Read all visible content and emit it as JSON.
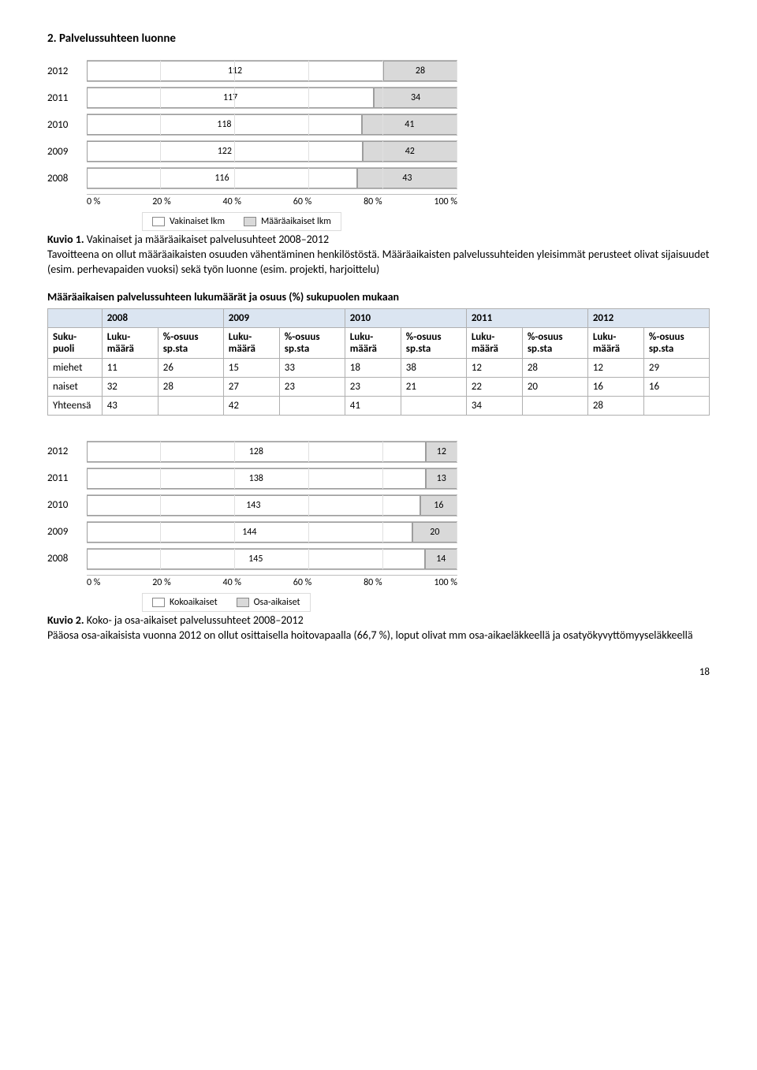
{
  "heading": "2. Palvelussuhteen luonne",
  "chart1": {
    "type": "stacked-bar-horizontal",
    "years": [
      "2012",
      "2011",
      "2010",
      "2009",
      "2008"
    ],
    "series1_label": "Vakinaiset lkm",
    "series2_label": "Määräaikaiset lkm",
    "series1_color": "#ffffff",
    "series2_color": "#d9d9d9",
    "rows": [
      {
        "year": "2012",
        "v1": 112,
        "v2": 28
      },
      {
        "year": "2011",
        "v1": 117,
        "v2": 34
      },
      {
        "year": "2010",
        "v1": 118,
        "v2": 41
      },
      {
        "year": "2009",
        "v1": 122,
        "v2": 42
      },
      {
        "year": "2008",
        "v1": 116,
        "v2": 43
      }
    ],
    "axis_ticks": [
      "0 %",
      "20 %",
      "40 %",
      "60 %",
      "80 %",
      "100 %"
    ]
  },
  "caption1": "Kuvio 1.",
  "caption1_rest": " Vakinaiset ja määräaikaiset palvelusuhteet 2008–2012",
  "para1": "Tavoitteena on ollut määräaikaisten osuuden vähentäminen henkilöstöstä. Määräaikaisten palvelussuhteiden yleisimmät perusteet olivat sijaisuudet (esim. perhevapaiden vuoksi) sekä työn luonne (esim. projekti, harjoittelu)",
  "table_heading": "Määräaikaisen palvelussuhteen lukumäärät ja osuus (%) sukupuolen mukaan",
  "table": {
    "year_headers": [
      "2008",
      "2009",
      "2010",
      "2011",
      "2012"
    ],
    "col_labels": {
      "rowhead": "Suku-puoli",
      "luku": "Luku-määrä",
      "osuus": "%-osuus sp.sta"
    },
    "rows": [
      {
        "label": "miehet",
        "cells": [
          "11",
          "26",
          "15",
          "33",
          "18",
          "38",
          "12",
          "28",
          "12",
          "29"
        ]
      },
      {
        "label": "naiset",
        "cells": [
          "32",
          "28",
          "27",
          "23",
          "23",
          "21",
          "22",
          "20",
          "16",
          "16"
        ]
      },
      {
        "label": "Yhteensä",
        "cells": [
          "43",
          "",
          "42",
          "",
          "41",
          "",
          "34",
          "",
          "28",
          ""
        ]
      }
    ]
  },
  "chart2": {
    "type": "stacked-bar-horizontal",
    "series1_label": "Kokoaikaiset",
    "series2_label": "Osa-aikaiset",
    "series1_color": "#ffffff",
    "series2_color": "#d9d9d9",
    "rows": [
      {
        "year": "2012",
        "v1": 128,
        "v2": 12
      },
      {
        "year": "2011",
        "v1": 138,
        "v2": 13
      },
      {
        "year": "2010",
        "v1": 143,
        "v2": 16
      },
      {
        "year": "2009",
        "v1": 144,
        "v2": 20
      },
      {
        "year": "2008",
        "v1": 145,
        "v2": 14
      }
    ],
    "axis_ticks": [
      "0 %",
      "20 %",
      "40 %",
      "60 %",
      "80 %",
      "100 %"
    ]
  },
  "caption2": "Kuvio 2.",
  "caption2_rest": " Koko- ja osa-aikaiset palvelussuhteet 2008–2012",
  "para2": "Pääosa osa-aikaisista vuonna 2012 on ollut osittaisella hoitovapaalla (66,7 %), loput olivat mm osa-aikaeläkkeellä ja osatyökyvyttömyyseläkkeellä",
  "page_number": "18"
}
